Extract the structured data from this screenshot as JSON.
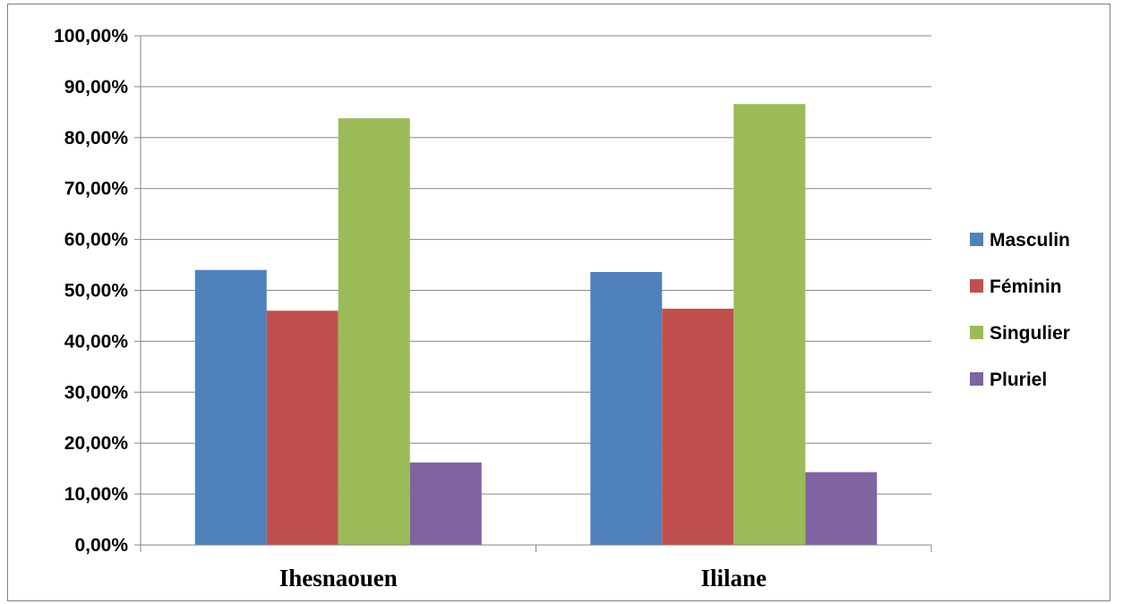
{
  "chart_data": {
    "type": "bar",
    "title": "",
    "xlabel": "",
    "ylabel": "",
    "categories": [
      "Ihesnaouen",
      "Ililane"
    ],
    "series": [
      {
        "name": "Masculin",
        "values": [
          54.0,
          53.6
        ],
        "color": "#4F81BD"
      },
      {
        "name": "Féminin",
        "values": [
          46.0,
          46.4
        ],
        "color": "#C0504D"
      },
      {
        "name": "Singulier",
        "values": [
          83.8,
          86.6
        ],
        "color": "#9BBB59"
      },
      {
        "name": "Pluriel",
        "values": [
          16.2,
          14.3
        ],
        "color": "#8064A2"
      }
    ],
    "ylim": [
      0,
      100
    ],
    "yticks": [
      0,
      10,
      20,
      30,
      40,
      50,
      60,
      70,
      80,
      90,
      100
    ],
    "ytick_labels": [
      "0,00%",
      "10,00%",
      "20,00%",
      "30,00%",
      "40,00%",
      "50,00%",
      "60,00%",
      "70,00%",
      "80,00%",
      "90,00%",
      "100,00%"
    ],
    "grid": true,
    "legend_position": "right",
    "gridline_color": "#868686",
    "axis_color": "#868686"
  }
}
